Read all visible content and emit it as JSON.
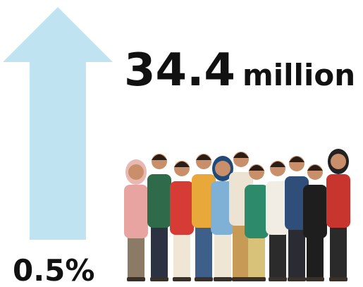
{
  "headline": {
    "number": "34.4",
    "unit": "million"
  },
  "growth": "0.5%"
}
